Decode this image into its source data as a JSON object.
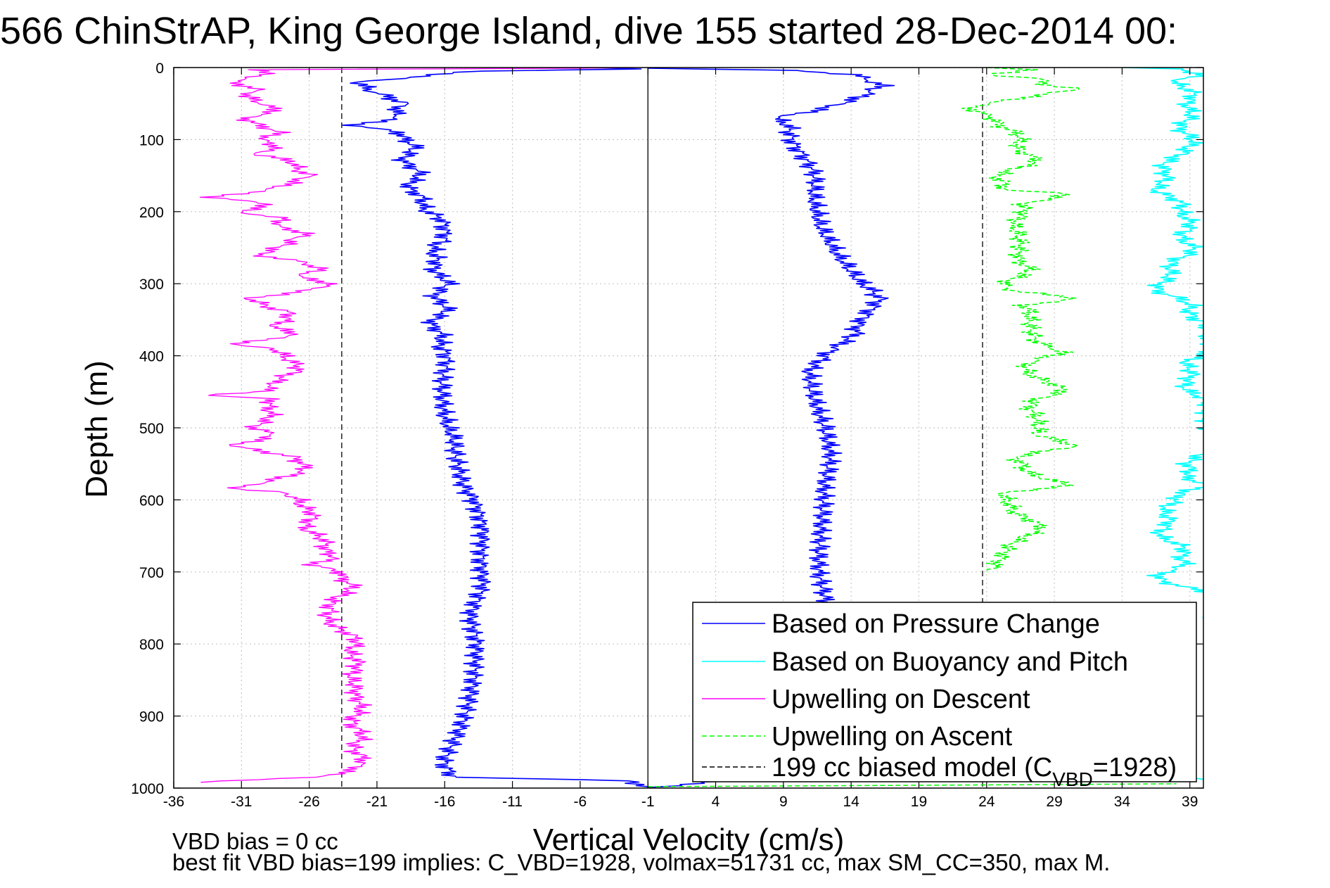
{
  "title": "566 ChinStrAP, King George Island, dive 155 started 28-Dec-2014 00:",
  "footer": {
    "line1": "VBD bias = 0 cc",
    "line2": "best fit VBD bias=199 implies: C_VBD=1928, volmax=51731 cc, max SM_CC=350, max M."
  },
  "chart_data": {
    "type": "line",
    "xlabel": "Vertical Velocity (cm/s)",
    "ylabel": "Depth (m)",
    "xlim": [
      -36,
      40
    ],
    "ylim": [
      0,
      1000
    ],
    "y_reversed": true,
    "grid": true,
    "xticks": [
      -36,
      -31,
      -26,
      -21,
      -16,
      -11,
      -6,
      -1,
      4,
      9,
      14,
      19,
      24,
      29,
      34,
      39
    ],
    "yticks": [
      0,
      100,
      200,
      300,
      400,
      500,
      600,
      700,
      800,
      900,
      1000
    ],
    "vertical_lines": [
      {
        "x": -1,
        "style": "solid",
        "color": "#000000"
      },
      {
        "x": -23.6,
        "style": "dashed",
        "color": "#000000"
      },
      {
        "x": 23.7,
        "style": "dashed",
        "color": "#000000"
      }
    ],
    "legend": {
      "position": "bottom-right",
      "entries": [
        {
          "label": "Based on Pressure Change",
          "color": "#0000ff",
          "style": "solid"
        },
        {
          "label": "Based on Buoyancy and Pitch",
          "color": "#00ffff",
          "style": "solid"
        },
        {
          "label": "Upwelling on Descent",
          "color": "#ff00ff",
          "style": "solid"
        },
        {
          "label": "Upwelling on Ascent",
          "color": "#00ff00",
          "style": "dashed"
        },
        {
          "label_prefix": "199 cc biased model (C",
          "label_sub": "VBD",
          "label_suffix": "=1928)",
          "color": "#000000",
          "style": "dashed"
        }
      ]
    },
    "series": [
      {
        "color": "#0000ff",
        "style": "solid",
        "width": 1.6,
        "points": [
          [
            -6,
            0
          ],
          [
            -1.5,
            2
          ],
          [
            -14,
            5
          ],
          [
            -22.5,
            20
          ],
          [
            -21.5,
            30
          ],
          [
            -20,
            40
          ],
          [
            -19,
            50
          ],
          [
            -20,
            60
          ],
          [
            -19.5,
            70
          ],
          [
            -22.5,
            80
          ],
          [
            -19,
            90
          ],
          [
            -18.5,
            110
          ],
          [
            -18.8,
            130
          ],
          [
            -18,
            150
          ],
          [
            -18.5,
            170
          ],
          [
            -17.5,
            190
          ],
          [
            -16.5,
            210
          ],
          [
            -16,
            240
          ],
          [
            -17,
            260
          ],
          [
            -16.5,
            280
          ],
          [
            -16,
            300
          ],
          [
            -16.5,
            320
          ],
          [
            -16,
            340
          ],
          [
            -17,
            360
          ],
          [
            -16,
            380
          ],
          [
            -16.2,
            400
          ],
          [
            -16,
            430
          ],
          [
            -15.8,
            470
          ],
          [
            -16,
            500
          ],
          [
            -15.2,
            530
          ],
          [
            -14.5,
            570
          ],
          [
            -14,
            600
          ],
          [
            -13.5,
            640
          ],
          [
            -13.5,
            680
          ],
          [
            -13,
            720
          ],
          [
            -13.8,
            760
          ],
          [
            -13.5,
            800
          ],
          [
            -14,
            840
          ],
          [
            -14.5,
            880
          ],
          [
            -15,
            920
          ],
          [
            -15.8,
            960
          ],
          [
            -15.5,
            985
          ],
          [
            -2,
            990
          ],
          [
            -1.5,
            995
          ],
          [
            -1,
            1000
          ]
        ]
      },
      {
        "color": "#0000ff",
        "style": "solid",
        "width": 1.6,
        "points": [
          [
            -1,
            1000
          ],
          [
            5,
            990
          ],
          [
            9,
            988
          ],
          [
            10.5,
            982
          ],
          [
            11,
            950
          ],
          [
            11.5,
            900
          ],
          [
            11.8,
            860
          ],
          [
            12,
            820
          ],
          [
            12.3,
            780
          ],
          [
            12,
            740
          ],
          [
            11.8,
            700
          ],
          [
            12,
            660
          ],
          [
            12,
            620
          ],
          [
            11.8,
            580
          ],
          [
            12.2,
            540
          ],
          [
            12,
            500
          ],
          [
            11.5,
            460
          ],
          [
            11.2,
            420
          ],
          [
            12,
            395
          ],
          [
            13.5,
            380
          ],
          [
            14.5,
            360
          ],
          [
            16.5,
            320
          ],
          [
            14.5,
            300
          ],
          [
            13,
            260
          ],
          [
            12,
            220
          ],
          [
            11.5,
            180
          ],
          [
            11,
            150
          ],
          [
            10.5,
            120
          ],
          [
            9.5,
            90
          ],
          [
            8.5,
            70
          ],
          [
            11,
            60
          ],
          [
            12,
            55
          ],
          [
            15,
            40
          ],
          [
            16.5,
            25
          ],
          [
            14,
            10
          ],
          [
            10,
            4
          ],
          [
            -1,
            1
          ]
        ]
      },
      {
        "color": "#00ffff",
        "style": "solid",
        "width": 1.6,
        "points": [
          [
            34,
            0
          ],
          [
            38.5,
            2
          ],
          [
            39.5,
            10
          ],
          [
            38,
            20
          ],
          [
            39.2,
            40
          ],
          [
            39,
            60
          ],
          [
            38.5,
            80
          ],
          [
            39,
            100
          ],
          [
            38.8,
            120
          ],
          [
            37.5,
            130
          ],
          [
            37,
            150
          ],
          [
            36.8,
            170
          ],
          [
            38.2,
            190
          ],
          [
            39,
            210
          ],
          [
            38.5,
            230
          ],
          [
            39.2,
            250
          ],
          [
            38,
            270
          ],
          [
            37.2,
            290
          ],
          [
            36.8,
            310
          ],
          [
            39,
            330
          ],
          [
            39.5,
            350
          ],
          [
            40.5,
            370
          ],
          [
            40.5,
            390
          ],
          [
            39,
            410
          ],
          [
            38.8,
            430
          ],
          [
            39,
            450
          ],
          [
            40.5,
            470
          ],
          [
            40.5,
            530
          ],
          [
            39,
            550
          ],
          [
            38.5,
            570
          ],
          [
            40.5,
            580
          ],
          [
            38,
            590
          ],
          [
            37.5,
            610
          ],
          [
            37.2,
            630
          ],
          [
            37,
            650
          ],
          [
            38.5,
            670
          ],
          [
            38.8,
            690
          ],
          [
            37,
            705
          ],
          [
            36.8,
            710
          ],
          [
            40.5,
            730
          ],
          [
            40.5,
            760
          ],
          [
            40.2,
            765
          ]
        ]
      },
      {
        "color": "#00ffff",
        "style": "solid",
        "width": 1.6,
        "points": [
          [
            38,
            980
          ],
          [
            39,
            985
          ],
          [
            40,
            988
          ]
        ]
      },
      {
        "color": "#ff00ff",
        "style": "solid",
        "width": 1.3,
        "points": [
          [
            -2,
            0
          ],
          [
            -6,
            1
          ],
          [
            -30,
            3
          ],
          [
            -29,
            10
          ],
          [
            -31.5,
            20
          ],
          [
            -30,
            30
          ],
          [
            -31,
            40
          ],
          [
            -29.5,
            50
          ],
          [
            -28,
            60
          ],
          [
            -30.5,
            70
          ],
          [
            -28.5,
            90
          ],
          [
            -29.5,
            100
          ],
          [
            -28,
            110
          ],
          [
            -29.8,
            120
          ],
          [
            -27.5,
            130
          ],
          [
            -25.8,
            150
          ],
          [
            -27,
            160
          ],
          [
            -29,
            170
          ],
          [
            -33.5,
            180
          ],
          [
            -29,
            190
          ],
          [
            -31,
            200
          ],
          [
            -27.5,
            210
          ],
          [
            -28.5,
            220
          ],
          [
            -26.5,
            230
          ],
          [
            -27.5,
            240
          ],
          [
            -29.5,
            260
          ],
          [
            -26.5,
            270
          ],
          [
            -25.5,
            280
          ],
          [
            -27,
            290
          ],
          [
            -24,
            300
          ],
          [
            -26,
            310
          ],
          [
            -30.5,
            320
          ],
          [
            -27.5,
            340
          ],
          [
            -28.5,
            360
          ],
          [
            -27,
            370
          ],
          [
            -32,
            385
          ],
          [
            -28.5,
            390
          ],
          [
            -27.5,
            400
          ],
          [
            -27,
            420
          ],
          [
            -28.5,
            440
          ],
          [
            -29,
            450
          ],
          [
            -33.5,
            455
          ],
          [
            -28.5,
            460
          ],
          [
            -29,
            480
          ],
          [
            -29.8,
            500
          ],
          [
            -28.5,
            510
          ],
          [
            -32,
            525
          ],
          [
            -27,
            540
          ],
          [
            -26.5,
            560
          ],
          [
            -28.5,
            570
          ],
          [
            -31.5,
            585
          ],
          [
            -27.5,
            590
          ],
          [
            -26.5,
            600
          ],
          [
            -26,
            620
          ],
          [
            -26,
            640
          ],
          [
            -25,
            660
          ],
          [
            -24,
            680
          ],
          [
            -25.5,
            690
          ],
          [
            -23.5,
            700
          ],
          [
            -23,
            720
          ],
          [
            -24,
            740
          ],
          [
            -25,
            760
          ],
          [
            -23.5,
            780
          ],
          [
            -22.5,
            800
          ],
          [
            -22.8,
            820
          ],
          [
            -22.5,
            840
          ],
          [
            -23,
            860
          ],
          [
            -22,
            880
          ],
          [
            -22.8,
            900
          ],
          [
            -22.3,
            920
          ],
          [
            -22.5,
            940
          ],
          [
            -22.2,
            960
          ],
          [
            -22.5,
            975
          ],
          [
            -25,
            985
          ],
          [
            -32.5,
            990
          ],
          [
            -34,
            992
          ]
        ]
      },
      {
        "color": "#00ff00",
        "style": "dashed",
        "width": 1.5,
        "points": [
          [
            24,
            0
          ],
          [
            27,
            3
          ],
          [
            24.5,
            10
          ],
          [
            28,
            15
          ],
          [
            28.5,
            25
          ],
          [
            30.5,
            30
          ],
          [
            27,
            40
          ],
          [
            23,
            55
          ],
          [
            24.5,
            70
          ],
          [
            26,
            90
          ],
          [
            26.5,
            110
          ],
          [
            27.5,
            130
          ],
          [
            25,
            150
          ],
          [
            25,
            170
          ],
          [
            30,
            175
          ],
          [
            26.5,
            190
          ],
          [
            26.5,
            210
          ],
          [
            26,
            230
          ],
          [
            26.5,
            260
          ],
          [
            27,
            280
          ],
          [
            25.5,
            300
          ],
          [
            26,
            310
          ],
          [
            30.5,
            320
          ],
          [
            26.5,
            330
          ],
          [
            27.5,
            350
          ],
          [
            27.5,
            380
          ],
          [
            30,
            395
          ],
          [
            27,
            410
          ],
          [
            27.5,
            430
          ],
          [
            30,
            450
          ],
          [
            27.5,
            460
          ],
          [
            27.5,
            480
          ],
          [
            27.5,
            510
          ],
          [
            30.5,
            525
          ],
          [
            26.5,
            540
          ],
          [
            26.5,
            560
          ],
          [
            30.5,
            580
          ],
          [
            25.5,
            590
          ],
          [
            26,
            620
          ],
          [
            28.5,
            640
          ],
          [
            25.5,
            660
          ],
          [
            25,
            690
          ],
          [
            24,
            700
          ]
        ]
      },
      {
        "color": "#00ff00",
        "style": "dashed",
        "width": 1.5,
        "points": [
          [
            -1,
            998
          ],
          [
            20,
            996
          ],
          [
            38,
            994
          ]
        ]
      }
    ]
  }
}
